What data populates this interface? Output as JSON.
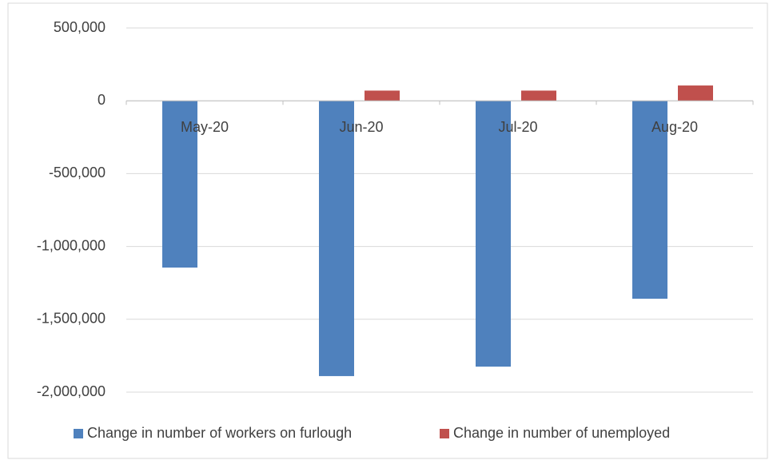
{
  "chart_data": {
    "type": "bar",
    "categories": [
      "May-20",
      "Jun-20",
      "Jul-20",
      "Aug-20"
    ],
    "series": [
      {
        "name": "Change in number of workers on furlough",
        "color": "#4f81bd",
        "values": [
          -1145000,
          -1890000,
          -1825000,
          -1359000
        ]
      },
      {
        "name": "Change in number of unemployed",
        "color": "#c0504d",
        "values": [
          0,
          70000,
          70000,
          105000
        ]
      }
    ],
    "ylim": [
      -2000000,
      500000
    ],
    "yticks": [
      {
        "value": -2000000,
        "label": "-2,000,000"
      },
      {
        "value": -1500000,
        "label": "-1,500,000"
      },
      {
        "value": -1000000,
        "label": "-1,000,000"
      },
      {
        "value": -500000,
        "label": "-500,000"
      },
      0,
      {
        "value": 500000,
        "label": "500,000"
      }
    ],
    "grid": true,
    "legend": "bottom"
  }
}
